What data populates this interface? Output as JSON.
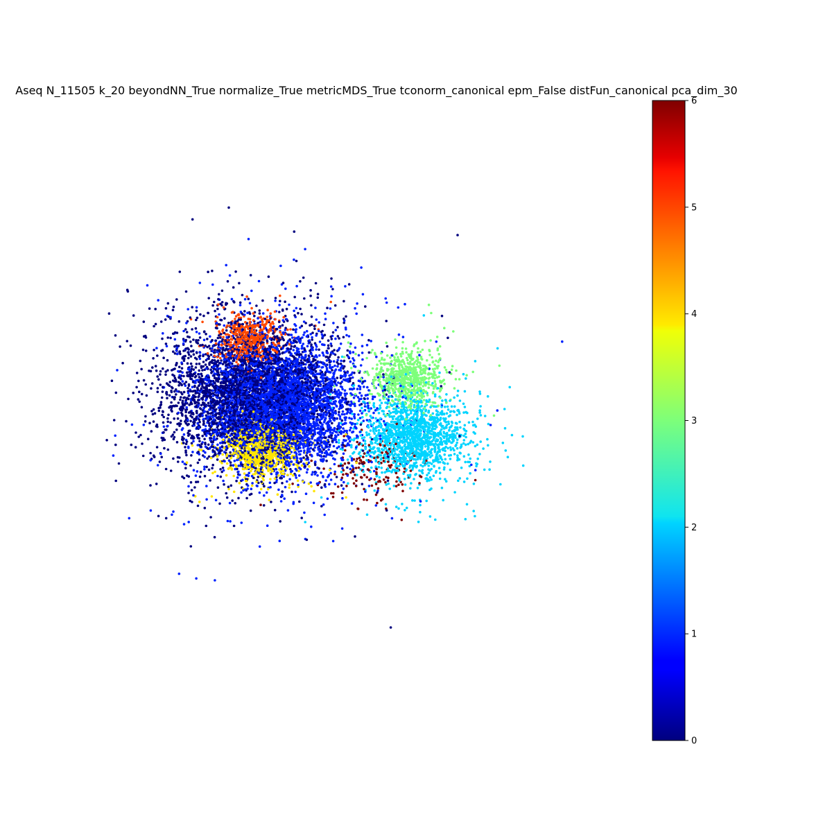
{
  "chart_data": {
    "type": "scatter",
    "title": "Aseq  N_11505 k_20 beyondNN_True normalize_True metricMDS_True tconorm_canonical epm_False distFun_canonical pca_dim_30",
    "xlabel": "",
    "ylabel": "",
    "axes_visible": false,
    "grid": false,
    "xlim": [
      -1,
      1
    ],
    "ylim": [
      -1,
      1
    ],
    "colormap": "jet",
    "colorbar": {
      "range": [
        0,
        6
      ],
      "ticks": [
        "0",
        "1",
        "2",
        "3",
        "4",
        "5",
        "6"
      ],
      "placement": "right"
    },
    "n_points_shown": 11505,
    "clusters": [
      {
        "label": 0,
        "color": "#00007f",
        "center": [
          -0.43,
          0.1
        ],
        "spread": [
          0.33,
          0.33
        ],
        "count": 3600
      },
      {
        "label": 1,
        "color": "#0022ff",
        "center": [
          -0.3,
          0.05
        ],
        "spread": [
          0.3,
          0.3
        ],
        "count": 4100
      },
      {
        "label": 2,
        "color": "#00d4ff",
        "center": [
          0.22,
          -0.1
        ],
        "spread": [
          0.2,
          0.18
        ],
        "count": 1600
      },
      {
        "label": 3,
        "color": "#7dff7a",
        "center": [
          0.2,
          0.18
        ],
        "spread": [
          0.14,
          0.12
        ],
        "count": 700
      },
      {
        "label": 4,
        "color": "#ffe500",
        "center": [
          -0.38,
          -0.16
        ],
        "spread": [
          0.14,
          0.12
        ],
        "count": 850
      },
      {
        "label": 5,
        "color": "#ff4a00",
        "center": [
          -0.42,
          0.36
        ],
        "spread": [
          0.12,
          0.1
        ],
        "count": 500
      },
      {
        "label": 6,
        "color": "#7f0000",
        "center": [
          0.05,
          -0.25
        ],
        "spread": [
          0.2,
          0.14
        ],
        "count": 155
      }
    ]
  }
}
